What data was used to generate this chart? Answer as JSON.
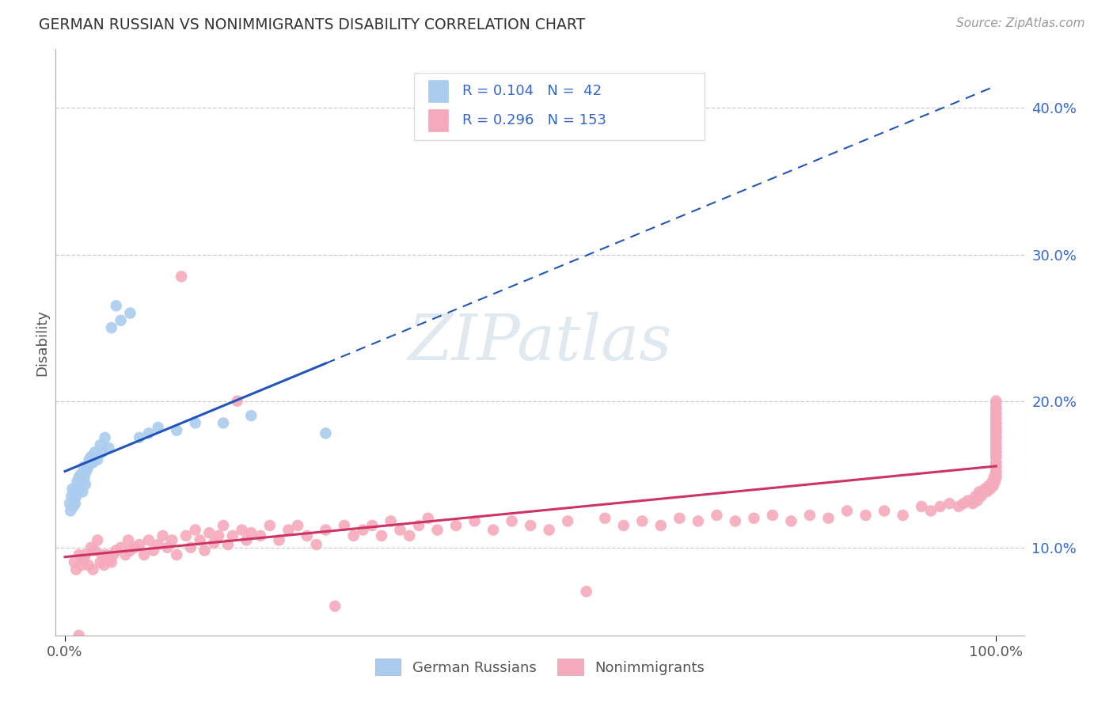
{
  "title": "GERMAN RUSSIAN VS NONIMMIGRANTS DISABILITY CORRELATION CHART",
  "source": "Source: ZipAtlas.com",
  "ylabel": "Disability",
  "watermark": "ZIPatlas",
  "legend_label1": "German Russians",
  "legend_label2": "Nonimmigrants",
  "R1": 0.104,
  "N1": 42,
  "R2": 0.296,
  "N2": 153,
  "color_blue": "#aaccee",
  "color_pink": "#f5aabb",
  "line_color_blue": "#2255bb",
  "line_color_pink": "#cc3366",
  "bg_color": "#ffffff",
  "grid_color": "#cccccc",
  "title_color": "#333333",
  "stat_text_color": "#3366cc",
  "ytick_color": "#3366cc",
  "xtick_color": "#555555",
  "ylabel_color": "#555555",
  "source_color": "#999999",
  "xlim": [
    -0.01,
    1.03
  ],
  "ylim": [
    0.04,
    0.44
  ],
  "ytick_vals": [
    0.1,
    0.2,
    0.3,
    0.4
  ],
  "ytick_labels": [
    "10.0%",
    "20.0%",
    "30.0%",
    "40.0%"
  ],
  "xtick_vals": [
    0.0,
    1.0
  ],
  "xtick_labels": [
    "0.0%",
    "100.0%"
  ],
  "blue_x": [
    0.005,
    0.006,
    0.007,
    0.008,
    0.009,
    0.01,
    0.01,
    0.011,
    0.012,
    0.013,
    0.014,
    0.015,
    0.016,
    0.017,
    0.018,
    0.019,
    0.02,
    0.021,
    0.022,
    0.023,
    0.025,
    0.026,
    0.028,
    0.03,
    0.032,
    0.035,
    0.038,
    0.04,
    0.043,
    0.047,
    0.05,
    0.055,
    0.06,
    0.07,
    0.08,
    0.09,
    0.1,
    0.12,
    0.14,
    0.17,
    0.2,
    0.28
  ],
  "blue_y": [
    0.13,
    0.125,
    0.135,
    0.14,
    0.128,
    0.132,
    0.138,
    0.13,
    0.135,
    0.145,
    0.14,
    0.148,
    0.142,
    0.15,
    0.145,
    0.138,
    0.155,
    0.148,
    0.143,
    0.152,
    0.155,
    0.16,
    0.162,
    0.158,
    0.165,
    0.16,
    0.17,
    0.165,
    0.175,
    0.168,
    0.25,
    0.265,
    0.255,
    0.26,
    0.175,
    0.178,
    0.182,
    0.18,
    0.185,
    0.185,
    0.19,
    0.178
  ],
  "pink_x": [
    0.01,
    0.012,
    0.015,
    0.015,
    0.018,
    0.02,
    0.022,
    0.025,
    0.028,
    0.03,
    0.032,
    0.035,
    0.038,
    0.04,
    0.042,
    0.045,
    0.048,
    0.05,
    0.052,
    0.055,
    0.06,
    0.065,
    0.068,
    0.07,
    0.075,
    0.08,
    0.085,
    0.09,
    0.095,
    0.1,
    0.105,
    0.11,
    0.115,
    0.12,
    0.125,
    0.13,
    0.135,
    0.14,
    0.145,
    0.15,
    0.155,
    0.16,
    0.165,
    0.17,
    0.175,
    0.18,
    0.185,
    0.19,
    0.195,
    0.2,
    0.21,
    0.22,
    0.23,
    0.24,
    0.25,
    0.26,
    0.27,
    0.28,
    0.29,
    0.3,
    0.31,
    0.32,
    0.33,
    0.34,
    0.35,
    0.36,
    0.37,
    0.38,
    0.39,
    0.4,
    0.42,
    0.44,
    0.46,
    0.48,
    0.5,
    0.52,
    0.54,
    0.56,
    0.58,
    0.6,
    0.62,
    0.64,
    0.66,
    0.68,
    0.7,
    0.72,
    0.74,
    0.76,
    0.78,
    0.8,
    0.82,
    0.84,
    0.86,
    0.88,
    0.9,
    0.92,
    0.93,
    0.94,
    0.95,
    0.96,
    0.965,
    0.97,
    0.975,
    0.978,
    0.98,
    0.982,
    0.984,
    0.986,
    0.988,
    0.99,
    0.992,
    0.994,
    0.996,
    0.997,
    0.998,
    0.999,
    1.0,
    1.0,
    1.0,
    1.0,
    1.0,
    1.0,
    1.0,
    1.0,
    1.0,
    1.0,
    1.0,
    1.0,
    1.0,
    1.0,
    1.0,
    1.0,
    1.0,
    1.0,
    1.0,
    1.0,
    1.0,
    1.0,
    1.0,
    1.0,
    1.0,
    1.0,
    1.0,
    1.0,
    1.0,
    1.0,
    1.0,
    1.0,
    1.0,
    1.0,
    1.0,
    1.0,
    1.0
  ],
  "pink_y": [
    0.09,
    0.085,
    0.04,
    0.095,
    0.088,
    0.092,
    0.095,
    0.088,
    0.1,
    0.085,
    0.098,
    0.105,
    0.09,
    0.095,
    0.088,
    0.095,
    0.092,
    0.09,
    0.095,
    0.098,
    0.1,
    0.095,
    0.105,
    0.098,
    0.1,
    0.102,
    0.095,
    0.105,
    0.098,
    0.102,
    0.108,
    0.1,
    0.105,
    0.095,
    0.285,
    0.108,
    0.1,
    0.112,
    0.105,
    0.098,
    0.11,
    0.103,
    0.108,
    0.115,
    0.102,
    0.108,
    0.2,
    0.112,
    0.105,
    0.11,
    0.108,
    0.115,
    0.105,
    0.112,
    0.115,
    0.108,
    0.102,
    0.112,
    0.06,
    0.115,
    0.108,
    0.112,
    0.115,
    0.108,
    0.118,
    0.112,
    0.108,
    0.115,
    0.12,
    0.112,
    0.115,
    0.118,
    0.112,
    0.118,
    0.115,
    0.112,
    0.118,
    0.07,
    0.12,
    0.115,
    0.118,
    0.115,
    0.12,
    0.118,
    0.122,
    0.118,
    0.12,
    0.122,
    0.118,
    0.122,
    0.12,
    0.125,
    0.122,
    0.125,
    0.122,
    0.128,
    0.125,
    0.128,
    0.13,
    0.128,
    0.13,
    0.132,
    0.13,
    0.135,
    0.132,
    0.138,
    0.135,
    0.138,
    0.14,
    0.138,
    0.142,
    0.14,
    0.145,
    0.142,
    0.148,
    0.145,
    0.148,
    0.15,
    0.148,
    0.152,
    0.155,
    0.152,
    0.158,
    0.155,
    0.162,
    0.158,
    0.165,
    0.162,
    0.168,
    0.165,
    0.17,
    0.168,
    0.175,
    0.172,
    0.178,
    0.175,
    0.18,
    0.178,
    0.185,
    0.182,
    0.188,
    0.185,
    0.195,
    0.19,
    0.2,
    0.195,
    0.198,
    0.192,
    0.188,
    0.185,
    0.182,
    0.18,
    0.175
  ]
}
